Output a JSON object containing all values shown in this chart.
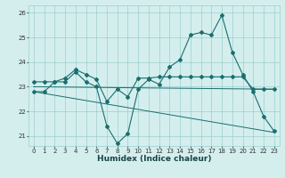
{
  "xlabel": "Humidex (Indice chaleur)",
  "bg_color": "#d4eeee",
  "grid_color": "#9ecece",
  "line_color": "#1a6e6e",
  "xlim": [
    -0.5,
    23.5
  ],
  "ylim": [
    20.6,
    26.3
  ],
  "yticks": [
    21,
    22,
    23,
    24,
    25,
    26
  ],
  "xticks": [
    0,
    1,
    2,
    3,
    4,
    5,
    6,
    7,
    8,
    9,
    10,
    11,
    12,
    13,
    14,
    15,
    16,
    17,
    18,
    19,
    20,
    21,
    22,
    23
  ],
  "series": [
    {
      "x": [
        0,
        1,
        2,
        3,
        4,
        5,
        6,
        7,
        8,
        9,
        10,
        11,
        12,
        13,
        14,
        15,
        16,
        17,
        18,
        19,
        20,
        21,
        22,
        23
      ],
      "y": [
        22.8,
        22.8,
        23.2,
        23.2,
        23.6,
        23.2,
        23.0,
        21.4,
        20.7,
        21.1,
        22.9,
        23.3,
        23.1,
        23.8,
        24.1,
        25.1,
        25.2,
        25.1,
        25.9,
        24.4,
        23.5,
        22.8,
        21.8,
        21.2
      ],
      "marker": true
    },
    {
      "x": [
        0,
        1,
        2,
        3,
        4,
        5,
        6,
        7,
        8,
        9,
        10,
        11,
        12,
        13,
        14,
        15,
        16,
        17,
        18,
        19,
        20,
        21,
        22,
        23
      ],
      "y": [
        23.2,
        23.2,
        23.2,
        23.35,
        23.7,
        23.5,
        23.3,
        22.4,
        22.9,
        22.6,
        23.35,
        23.35,
        23.4,
        23.4,
        23.4,
        23.4,
        23.4,
        23.4,
        23.4,
        23.4,
        23.4,
        22.9,
        22.9,
        22.9
      ],
      "marker": true
    },
    {
      "x": [
        0,
        23
      ],
      "y": [
        23.0,
        22.9
      ],
      "marker": false
    },
    {
      "x": [
        0,
        23
      ],
      "y": [
        22.8,
        21.15
      ],
      "marker": false
    }
  ]
}
